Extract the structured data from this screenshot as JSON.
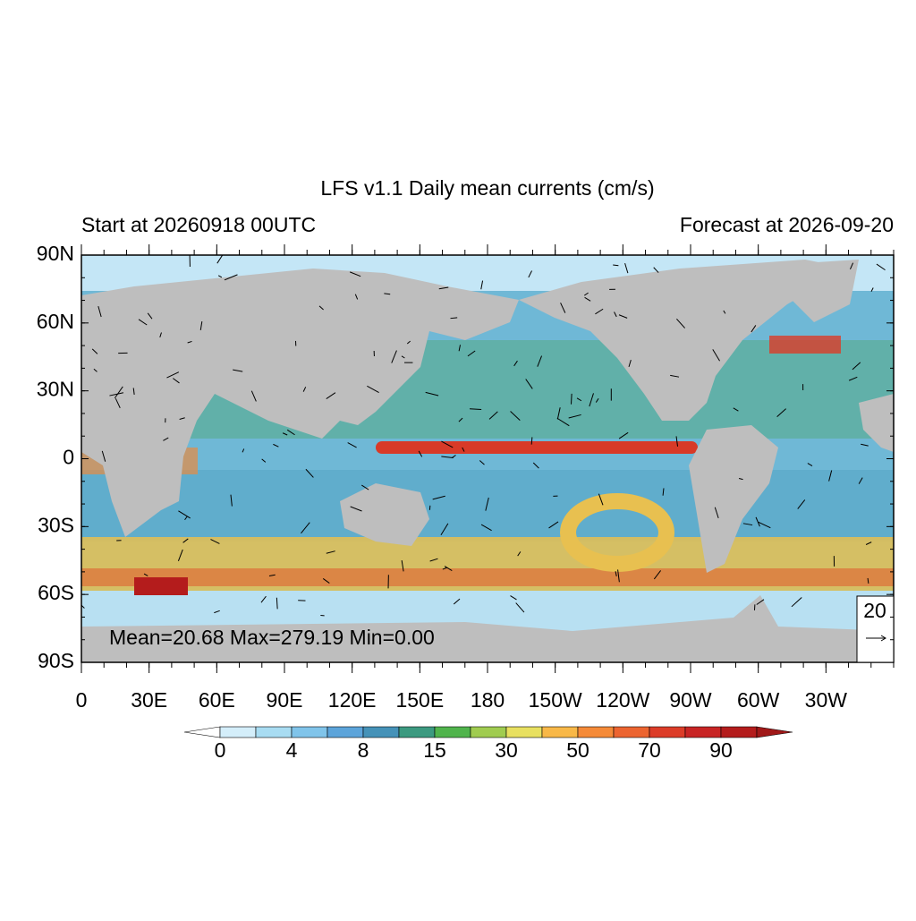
{
  "title": "LFS v1.1 Daily mean currents (cm/s)",
  "left_subtitle": "Start at 20260918 00UTC",
  "right_subtitle": "Forecast at 2026-09-20",
  "stats": "Mean=20.68  Max=279.19  Min=0.00",
  "reference_vector": "20",
  "lat_labels": [
    "90N",
    "60N",
    "30N",
    "0",
    "30S",
    "60S",
    "90S"
  ],
  "lon_labels": [
    "0",
    "30E",
    "60E",
    "90E",
    "120E",
    "150E",
    "180",
    "150W",
    "120W",
    "90W",
    "60W",
    "30W"
  ],
  "colorbar": {
    "labels": [
      "0",
      "4",
      "8",
      "15",
      "30",
      "50",
      "70",
      "90"
    ],
    "colors": [
      "#d4eefa",
      "#a8dcf2",
      "#80c4ea",
      "#5ca4da",
      "#4592b8",
      "#3c9a80",
      "#50b44c",
      "#a0cc50",
      "#e8e060",
      "#f8b848",
      "#f58a38",
      "#ec6430",
      "#dc3c28",
      "#c82424",
      "#b41c1c"
    ],
    "under_color": "#ffffff",
    "over_color": "#a01818"
  }
}
